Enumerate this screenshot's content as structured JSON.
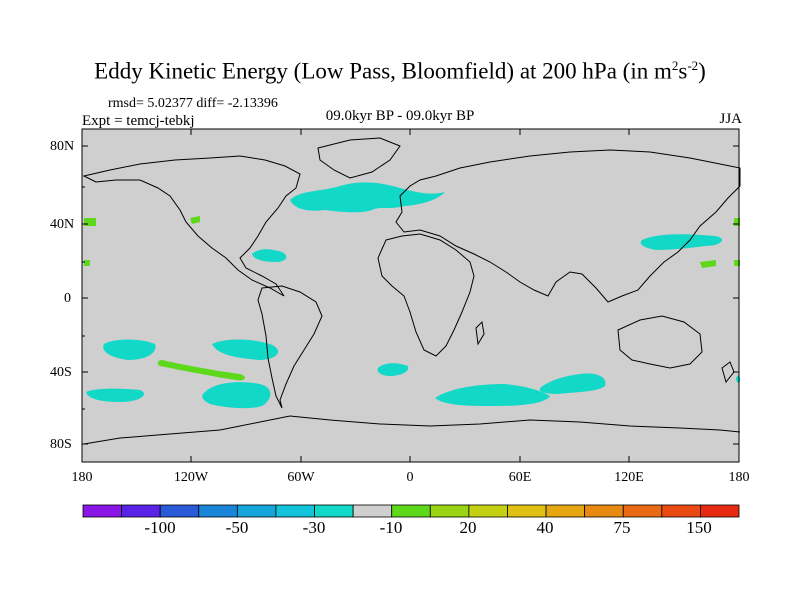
{
  "title": {
    "main": "Eddy Kinetic Energy (Low Pass, Bloomfield) at 200 hPa (in m",
    "sup1": "2",
    "mid": "s",
    "sup2": "-2",
    "end": ")"
  },
  "stats": "rmsd= 5.02377 diff= -2.13396",
  "experiment": "Expt = temcj-tebkj",
  "period": "09.0kyr BP - 09.0kyr BP",
  "season": "JJA",
  "lat_labels": [
    "80N",
    "40N",
    "0",
    "40S",
    "80S"
  ],
  "lon_labels": [
    "180",
    "120W",
    "60W",
    "0",
    "60E",
    "120E",
    "180"
  ],
  "colorbar": {
    "colors": [
      "#8a16e6",
      "#5a22e6",
      "#2a5ad8",
      "#1a86da",
      "#14a6da",
      "#12c4da",
      "#12d8c8",
      "#cfcfcf",
      "#5ed81a",
      "#9ad412",
      "#c4d012",
      "#e0c012",
      "#e6a612",
      "#e88a12",
      "#e86a12",
      "#e84a12",
      "#e62a12"
    ],
    "labels": [
      "-100",
      "-50",
      "-30",
      "-10",
      "20",
      "40",
      "75",
      "150"
    ]
  },
  "map_colors": {
    "background": "#cfcfcf",
    "negative": "#12d8c8",
    "positive": "#5ed81a",
    "coast": "#000000"
  }
}
